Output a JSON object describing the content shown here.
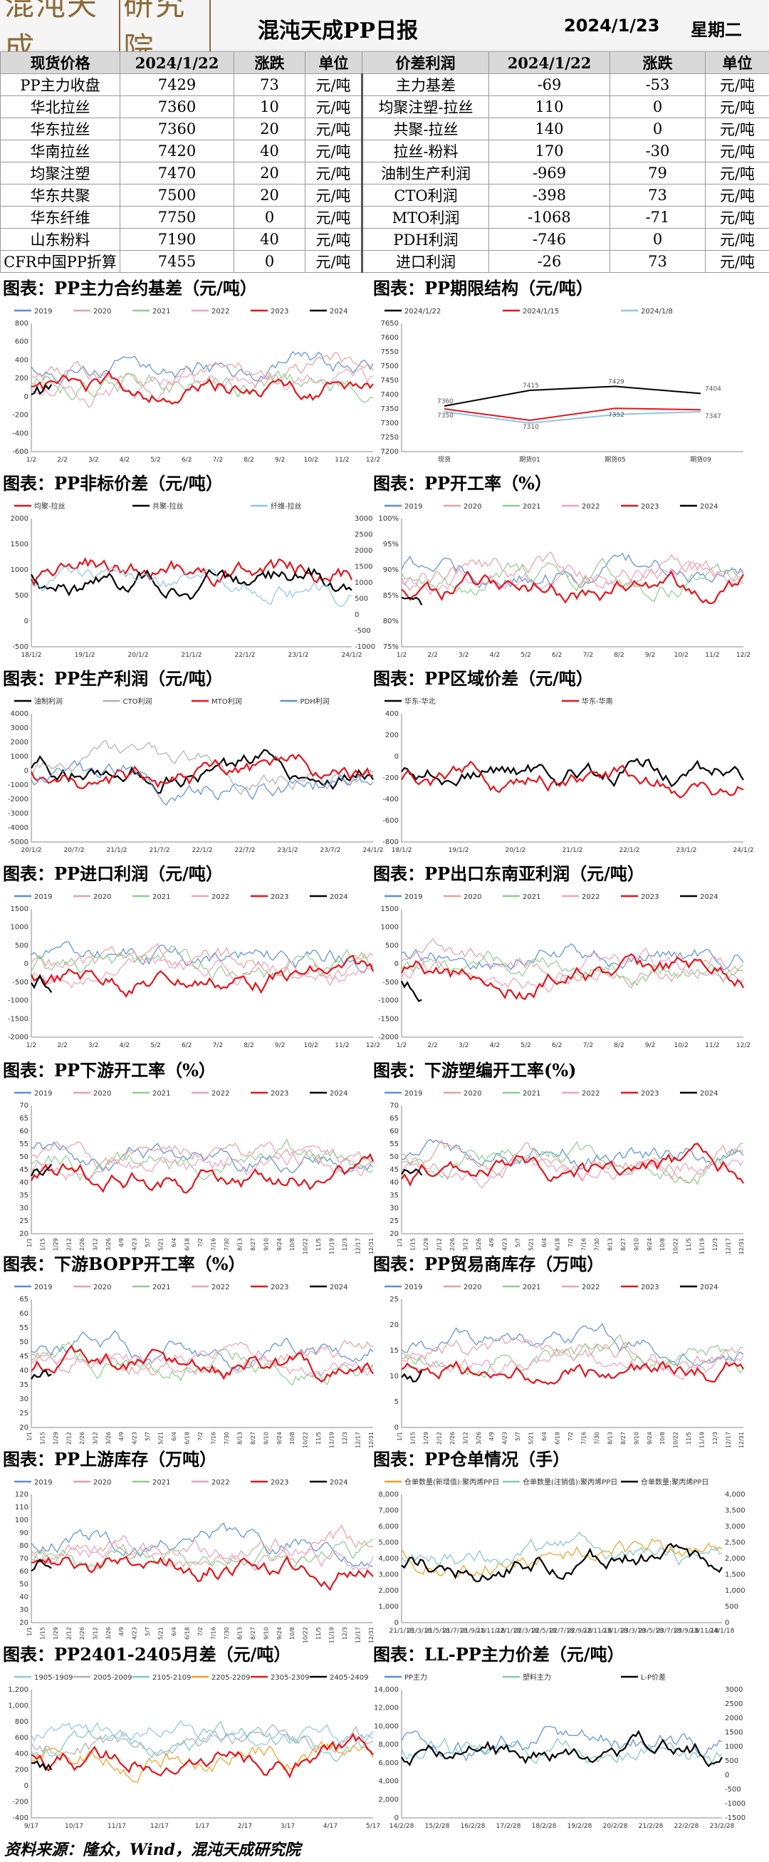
{
  "header": {
    "logo_main": "混沌天成",
    "logo_box": "研究院",
    "title": "混沌天成PP日报",
    "date": "2024/1/23",
    "weekday": "星期二"
  },
  "price_table": {
    "headers": [
      "现货价格",
      "2024/1/22",
      "涨跌",
      "单位",
      "价差利润",
      "2024/1/22",
      "涨跌",
      "单位"
    ],
    "rows": [
      [
        "PP主力收盘",
        "7429",
        "73",
        "元/吨",
        "主力基差",
        "-69",
        "-53",
        "元/吨"
      ],
      [
        "华北拉丝",
        "7360",
        "10",
        "元/吨",
        "均聚注塑-拉丝",
        "110",
        "0",
        "元/吨"
      ],
      [
        "华东拉丝",
        "7360",
        "20",
        "元/吨",
        "共聚-拉丝",
        "140",
        "0",
        "元/吨"
      ],
      [
        "华南拉丝",
        "7420",
        "40",
        "元/吨",
        "拉丝-粉料",
        "170",
        "-30",
        "元/吨"
      ],
      [
        "均聚注塑",
        "7470",
        "20",
        "元/吨",
        "油制生产利润",
        "-969",
        "79",
        "元/吨"
      ],
      [
        "华东共聚",
        "7500",
        "20",
        "元/吨",
        "CTO利润",
        "-398",
        "73",
        "元/吨"
      ],
      [
        "华东纤维",
        "7750",
        "0",
        "元/吨",
        "MTO利润",
        "-1068",
        "-71",
        "元/吨"
      ],
      [
        "山东粉料",
        "7190",
        "40",
        "元/吨",
        "PDH利润",
        "-746",
        "0",
        "元/吨"
      ],
      [
        "CFR中国PP折算",
        "7455",
        "0",
        "元/吨",
        "进口利润",
        "-26",
        "73",
        "元/吨"
      ]
    ]
  },
  "colors": {
    "c2019": "#5b8fd6",
    "c2020": "#e8a0a0",
    "c2021": "#8ccf8c",
    "c2022": "#f0a0c0",
    "c2023": "#e8141a",
    "c2024": "#000000",
    "grey": "#b0b0b0",
    "lightblue": "#90c4e8",
    "teal": "#80c8c0",
    "orange": "#f0a020"
  },
  "year_legend": [
    "2019",
    "2020",
    "2021",
    "2022",
    "2023",
    "2024"
  ],
  "month_ticks": [
    "1/2",
    "2/2",
    "3/2",
    "4/2",
    "5/2",
    "6/2",
    "7/2",
    "8/2",
    "9/2",
    "10/2",
    "11/2",
    "12/2"
  ],
  "week_ticks": [
    "1/1",
    "1/15",
    "1/29",
    "2/12",
    "2/26",
    "3/12",
    "3/26",
    "4/9",
    "4/23",
    "5/7",
    "5/21",
    "6/4",
    "6/18",
    "7/2",
    "7/16",
    "7/30",
    "8/13",
    "8/27",
    "9/10",
    "9/24",
    "10/8",
    "10/22",
    "11/5",
    "11/19",
    "12/3",
    "12/17",
    "12/31"
  ],
  "panels": [
    {
      "title": "图表：PP主力合约基差（元/吨）",
      "chart_data": {
        "type": "line",
        "legend": [
          "2019",
          "2020",
          "2021",
          "2022",
          "2023",
          "2024"
        ],
        "yticks": [
          "800",
          "600",
          "400",
          "200",
          "0",
          "-200",
          "-400",
          "-600"
        ],
        "ylim": [
          -600,
          800
        ],
        "xticks": [
          "1/2",
          "2/2",
          "3/2",
          "4/2",
          "5/2",
          "6/2",
          "7/2",
          "8/2",
          "9/2",
          "10/2",
          "11/2",
          "12/2"
        ]
      }
    },
    {
      "title": "图表：PP期限结构（元/吨）",
      "chart_data": {
        "type": "line",
        "legend": [
          "2024/1/22",
          "2024/1/15",
          "2024/1/8"
        ],
        "categories": [
          "现货",
          "期货01",
          "期货05",
          "期货09"
        ],
        "ylim": [
          7200,
          7650
        ],
        "yticks": [
          "7650",
          "7600",
          "7550",
          "7500",
          "7450",
          "7400",
          "7350",
          "7300",
          "7250",
          "7200"
        ],
        "series": [
          {
            "name": "2024/1/22",
            "values": [
              7360,
              7415,
              7429,
              7404
            ]
          },
          {
            "name": "2024/1/15",
            "values": [
              7350,
              7310,
              7352,
              7347
            ]
          },
          {
            "name": "2024/1/8",
            "values": [
              7340,
              7300,
              7330,
              7340
            ]
          }
        ],
        "data_labels": [
          "7360",
          "7350",
          "7415",
          "7310",
          "7429",
          "7352",
          "7404",
          "7347"
        ]
      }
    },
    {
      "title": "图表：PP非标价差（元/吨）",
      "chart_data": {
        "type": "line",
        "legend": [
          "均聚-拉丝",
          "共聚-拉丝",
          "纤维-拉丝"
        ],
        "yticks": [
          "2000",
          "1500",
          "1000",
          "500",
          "0",
          "-500"
        ],
        "y2ticks": [
          "3000",
          "2500",
          "2000",
          "1500",
          "1000",
          "500",
          "0",
          "-500",
          "-1000"
        ],
        "xticks": [
          "18/1/2",
          "19/1/2",
          "20/1/2",
          "21/1/2",
          "22/1/2",
          "23/1/2",
          "24/1/2"
        ]
      }
    },
    {
      "title": "图表：PP开工率（%）",
      "chart_data": {
        "type": "line",
        "legend": [
          "2019",
          "2020",
          "2021",
          "2022",
          "2023",
          "2024"
        ],
        "yticks": [
          "100%",
          "95%",
          "90%",
          "85%",
          "80%",
          "75%"
        ],
        "ylim": [
          75,
          100
        ],
        "xticks": [
          "1/2",
          "2/2",
          "3/2",
          "4/2",
          "5/2",
          "6/2",
          "7/2",
          "8/2",
          "9/2",
          "10/2",
          "11/2",
          "12/2"
        ]
      }
    },
    {
      "title": "图表：PP生产利润（元/吨）",
      "chart_data": {
        "type": "line",
        "legend": [
          "油制利润",
          "CTO利润",
          "MTO利润",
          "PDH利润"
        ],
        "yticks": [
          "4000",
          "3000",
          "2000",
          "1000",
          "0",
          "-1000",
          "-2000",
          "-3000",
          "-4000",
          "-5000"
        ],
        "ylim": [
          -5000,
          4000
        ],
        "xticks": [
          "20/1/2",
          "20/7/2",
          "21/1/2",
          "21/7/2",
          "22/1/2",
          "22/7/2",
          "23/1/2",
          "23/7/2",
          "24/1/2"
        ]
      }
    },
    {
      "title": "图表：PP区域价差（元/吨）",
      "chart_data": {
        "type": "line",
        "legend": [
          "华东-华北",
          "华东-华南"
        ],
        "yticks": [
          "400",
          "200",
          "0",
          "-200",
          "-400",
          "-600",
          "-800"
        ],
        "ylim": [
          -800,
          400
        ],
        "xticks": [
          "18/1/2",
          "19/1/2",
          "20/1/2",
          "21/1/2",
          "22/1/2",
          "23/1/2",
          "24/1/2"
        ]
      }
    },
    {
      "title": "图表：PP进口利润（元/吨）",
      "chart_data": {
        "type": "line",
        "legend": [
          "2019",
          "2020",
          "2021",
          "2022",
          "2023",
          "2024"
        ],
        "yticks": [
          "1500",
          "1000",
          "500",
          "0",
          "-500",
          "-1000",
          "-1500",
          "-2000"
        ],
        "ylim": [
          -2000,
          1500
        ],
        "xticks": [
          "1/2",
          "2/2",
          "3/2",
          "4/2",
          "5/2",
          "6/2",
          "7/2",
          "8/2",
          "9/2",
          "10/2",
          "11/2",
          "12/2"
        ]
      }
    },
    {
      "title": "图表：PP出口东南亚利润（元/吨）",
      "chart_data": {
        "type": "line",
        "legend": [
          "2019",
          "2020",
          "2021",
          "2022",
          "2023",
          "2024"
        ],
        "yticks": [
          "1500",
          "1000",
          "500",
          "0",
          "-500",
          "-1000",
          "-1500",
          "-2000"
        ],
        "ylim": [
          -2000,
          1500
        ],
        "xticks": [
          "1/2",
          "2/2",
          "3/2",
          "4/2",
          "5/2",
          "6/2",
          "7/2",
          "8/2",
          "9/2",
          "10/2",
          "11/2",
          "12/2"
        ]
      }
    },
    {
      "title": "图表：PP下游开工率（%）",
      "chart_data": {
        "type": "line",
        "legend": [
          "2019",
          "2020",
          "2021",
          "2022",
          "2023",
          "2024"
        ],
        "yticks": [
          "70",
          "65",
          "60",
          "55",
          "50",
          "45",
          "40",
          "35",
          "30",
          "25",
          "20"
        ],
        "ylim": [
          20,
          70
        ],
        "xticks": "week"
      }
    },
    {
      "title": "图表：下游塑编开工率(%)",
      "chart_data": {
        "type": "line",
        "legend": [
          "2019",
          "2020",
          "2021",
          "2022",
          "2023",
          "2024"
        ],
        "yticks": [
          "70",
          "65",
          "60",
          "55",
          "50",
          "45",
          "40",
          "35",
          "30",
          "25",
          "20"
        ],
        "ylim": [
          20,
          70
        ],
        "xticks": "week"
      }
    },
    {
      "title": "图表：下游BOPP开工率（%）",
      "chart_data": {
        "type": "line",
        "legend": [
          "2019",
          "2020",
          "2021",
          "2022",
          "2023",
          "2024"
        ],
        "yticks": [
          "65",
          "60",
          "55",
          "50",
          "45",
          "40",
          "35",
          "30",
          "25",
          "20"
        ],
        "ylim": [
          20,
          65
        ],
        "xticks": "week"
      }
    },
    {
      "title": "图表：PP贸易商库存（万吨）",
      "chart_data": {
        "type": "line",
        "legend": [
          "2019",
          "2020",
          "2021",
          "2022",
          "2023",
          "2024"
        ],
        "yticks": [
          "25",
          "20",
          "15",
          "10",
          "5",
          "0"
        ],
        "ylim": [
          0,
          25
        ],
        "xticks": "week"
      }
    },
    {
      "title": "图表：PP上游库存（万吨）",
      "chart_data": {
        "type": "line",
        "legend": [
          "2019",
          "2020",
          "2021",
          "2022",
          "2023",
          "2024"
        ],
        "yticks": [
          "120",
          "110",
          "100",
          "90",
          "80",
          "70",
          "60",
          "50",
          "40",
          "30",
          "20"
        ],
        "ylim": [
          20,
          120
        ],
        "xticks": "week"
      }
    },
    {
      "title": "图表：PP仓单情况（手）",
      "chart_data": {
        "type": "bar+line",
        "legend": [
          "仓单数量(新增值):聚丙烯PP日",
          "仓单数量(注销值):聚丙烯PP日",
          "仓单数量:聚丙烯PP日"
        ],
        "yticks": [
          "8,000",
          "7,000",
          "6,000",
          "5,000",
          "4,000",
          "3,000",
          "2,000",
          "1,000",
          "0"
        ],
        "y2ticks": [
          "4,000",
          "3,500",
          "3,000",
          "2,500",
          "2,000",
          "1,500",
          "1,000",
          "500",
          "0"
        ],
        "xticks": [
          "21/1/18",
          "21/3/18",
          "21/5/18",
          "21/7/18",
          "21/9/18",
          "21/11/18",
          "22/1/18",
          "22/3/18",
          "22/5/18",
          "22/7/18",
          "22/9/18",
          "22/11/18",
          "23/1/18",
          "23/3/18",
          "23/5/18",
          "23/7/18",
          "23/9/18",
          "23/11/18",
          "24/1/18"
        ]
      }
    },
    {
      "title": "图表：PP2401-2405月差（元/吨）",
      "chart_data": {
        "type": "line",
        "legend": [
          "1905-1909",
          "2005-2009",
          "2105-2109",
          "2205-2209",
          "2305-2309",
          "2405-2409"
        ],
        "yticks": [
          "1,200",
          "1,000",
          "800",
          "600",
          "400",
          "200",
          "0",
          "-200",
          "-400"
        ],
        "ylim": [
          -400,
          1200
        ],
        "xticks": [
          "9/17",
          "10/17",
          "11/17",
          "12/17",
          "1/17",
          "2/17",
          "3/17",
          "4/17",
          "5/17"
        ]
      }
    },
    {
      "title": "图表：LL-PP主力价差（元/吨）",
      "chart_data": {
        "type": "line",
        "legend": [
          "PP主力",
          "塑料主力",
          "L-P价差"
        ],
        "yticks": [
          "14,000",
          "12,000",
          "10,000",
          "8,000",
          "6,000",
          "4,000",
          "2,000",
          "0"
        ],
        "y2ticks": [
          "3000",
          "2500",
          "2000",
          "1500",
          "1000",
          "500",
          "0",
          "-500",
          "-1000",
          "-1500"
        ],
        "xticks": [
          "14/2/28",
          "15/2/28",
          "16/2/28",
          "17/2/28",
          "18/2/28",
          "19/2/28",
          "20/2/28",
          "21/2/28",
          "22/2/28",
          "23/2/28"
        ]
      }
    }
  ],
  "footer": "资料来源：隆众，Wind，混沌天成研究院"
}
